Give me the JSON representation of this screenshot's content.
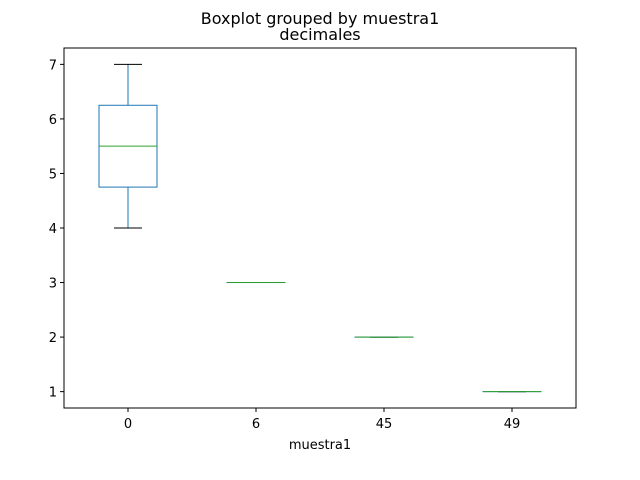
{
  "chart_data": {
    "type": "box",
    "suptitle": "Boxplot grouped by muestra1",
    "title": "decimales",
    "xlabel": "muestra1",
    "ylabel": "",
    "ylim": [
      0.7,
      7.3
    ],
    "yticks": [
      1,
      2,
      3,
      4,
      5,
      6,
      7
    ],
    "grid": false,
    "colors": {
      "box": "#1f77b4",
      "median": "#2ca02c",
      "whisker_cap": "#000000"
    },
    "boxes": [
      {
        "category": "0",
        "whisker_low": 4,
        "q1": 4.75,
        "median": 5.5,
        "q3": 6.25,
        "whisker_high": 7
      },
      {
        "category": "6",
        "whisker_low": 3,
        "q1": 3,
        "median": 3,
        "q3": 3,
        "whisker_high": 3
      },
      {
        "category": "45",
        "whisker_low": 2,
        "q1": 2,
        "median": 2,
        "q3": 2,
        "whisker_high": 2
      },
      {
        "category": "49",
        "whisker_low": 1,
        "q1": 1,
        "median": 1,
        "q3": 1,
        "whisker_high": 1
      }
    ]
  }
}
